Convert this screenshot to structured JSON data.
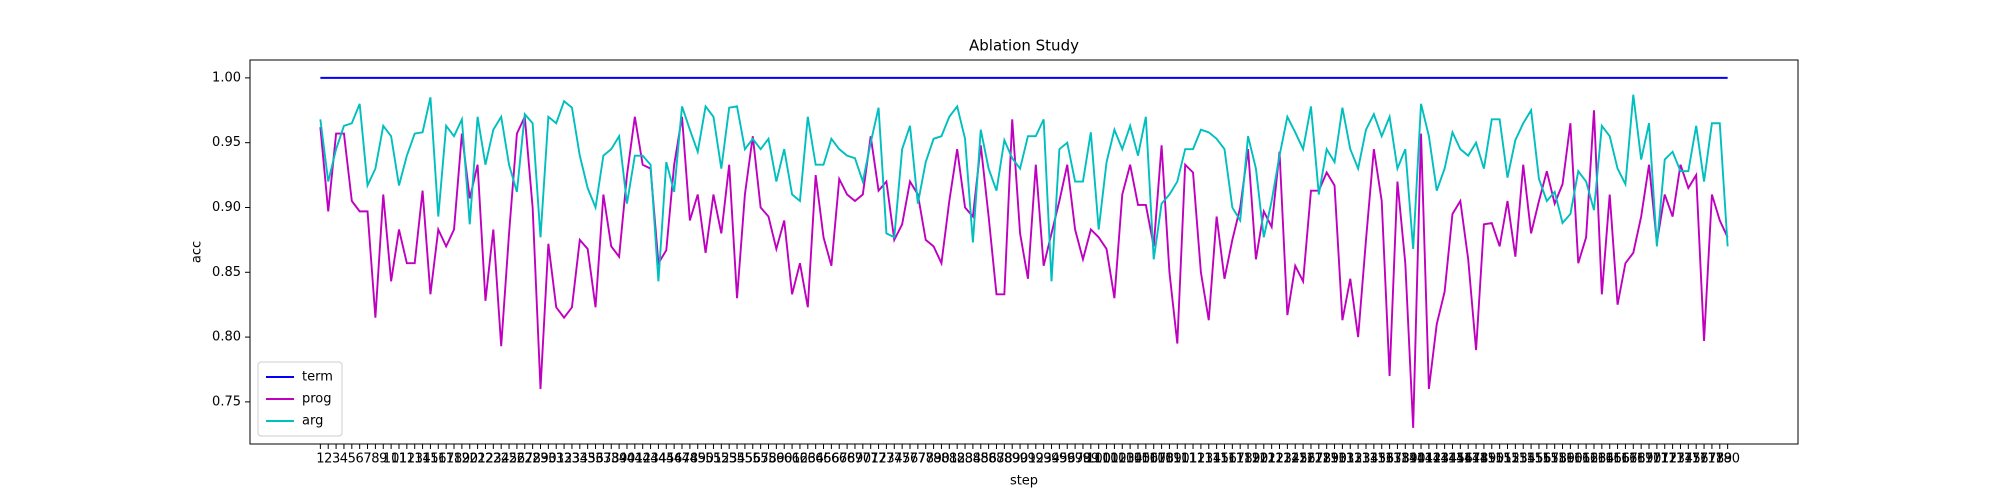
{
  "chart_data": {
    "type": "line",
    "title": "Ablation Study",
    "x_label": "step",
    "y_label": "acc",
    "categories": [
      "1",
      "2",
      "3",
      "4",
      "5",
      "6",
      "7",
      "8",
      "9",
      "10",
      "11",
      "12",
      "13",
      "14",
      "15",
      "16",
      "17",
      "18",
      "19",
      "20",
      "21",
      "22",
      "23",
      "24",
      "25",
      "26",
      "27",
      "28",
      "29",
      "30",
      "31",
      "32",
      "33",
      "34",
      "35",
      "36",
      "37",
      "38",
      "39",
      "40",
      "41",
      "42",
      "43",
      "44",
      "45",
      "46",
      "47",
      "48",
      "49",
      "50",
      "51",
      "52",
      "53",
      "54",
      "55",
      "56",
      "57",
      "58",
      "59",
      "60",
      "61",
      "62",
      "63",
      "64",
      "65",
      "66",
      "67",
      "68",
      "69",
      "70",
      "71",
      "72",
      "73",
      "74",
      "75",
      "76",
      "77",
      "78",
      "79",
      "80",
      "81",
      "82",
      "83",
      "84",
      "85",
      "86",
      "87",
      "88",
      "89",
      "90",
      "91",
      "92",
      "93",
      "94",
      "95",
      "96",
      "97",
      "98",
      "99",
      "100",
      "101",
      "102",
      "103",
      "104",
      "105",
      "106",
      "107",
      "108",
      "109",
      "110",
      "111",
      "112",
      "113",
      "114",
      "115",
      "116",
      "117",
      "118",
      "119",
      "120",
      "121",
      "122",
      "123",
      "124",
      "125",
      "126",
      "127",
      "128",
      "129",
      "130",
      "131",
      "132",
      "133",
      "134",
      "135",
      "136",
      "137",
      "138",
      "139",
      "140",
      "141",
      "142",
      "143",
      "144",
      "145",
      "146",
      "147",
      "148",
      "149",
      "150",
      "151",
      "152",
      "153",
      "154",
      "155",
      "156",
      "157",
      "158",
      "159",
      "160",
      "161",
      "162",
      "163",
      "164",
      "165",
      "166",
      "167",
      "168",
      "169",
      "170",
      "171",
      "172",
      "173",
      "174",
      "175",
      "176",
      "177",
      "178",
      "179",
      "180"
    ],
    "series": [
      {
        "name": "term",
        "color": "#0000ff",
        "values": [
          1,
          1,
          1,
          1,
          1,
          1,
          1,
          1,
          1,
          1,
          1,
          1,
          1,
          1,
          1,
          1,
          1,
          1,
          1,
          1,
          1,
          1,
          1,
          1,
          1,
          1,
          1,
          1,
          1,
          1,
          1,
          1,
          1,
          1,
          1,
          1,
          1,
          1,
          1,
          1,
          1,
          1,
          1,
          1,
          1,
          1,
          1,
          1,
          1,
          1,
          1,
          1,
          1,
          1,
          1,
          1,
          1,
          1,
          1,
          1,
          1,
          1,
          1,
          1,
          1,
          1,
          1,
          1,
          1,
          1,
          1,
          1,
          1,
          1,
          1,
          1,
          1,
          1,
          1,
          1,
          1,
          1,
          1,
          1,
          1,
          1,
          1,
          1,
          1,
          1,
          1,
          1,
          1,
          1,
          1,
          1,
          1,
          1,
          1,
          1,
          1,
          1,
          1,
          1,
          1,
          1,
          1,
          1,
          1,
          1,
          1,
          1,
          1,
          1,
          1,
          1,
          1,
          1,
          1,
          1,
          1,
          1,
          1,
          1,
          1,
          1,
          1,
          1,
          1,
          1,
          1,
          1,
          1,
          1,
          1,
          1,
          1,
          1,
          1,
          1,
          1,
          1,
          1,
          1,
          1,
          1,
          1,
          1,
          1,
          1,
          1,
          1,
          1,
          1,
          1,
          1,
          1,
          1,
          1,
          1,
          1,
          1,
          1,
          1,
          1,
          1,
          1,
          1,
          1,
          1,
          1,
          1,
          1,
          1,
          1,
          1,
          1,
          1,
          1,
          1
        ]
      },
      {
        "name": "prog",
        "color": "#bf00bf",
        "values": [
          0.962,
          0.897,
          0.957,
          0.957,
          0.905,
          0.897,
          0.897,
          0.815,
          0.91,
          0.843,
          0.883,
          0.857,
          0.857,
          0.913,
          0.833,
          0.883,
          0.87,
          0.883,
          0.957,
          0.907,
          0.933,
          0.828,
          0.883,
          0.793,
          0.88,
          0.957,
          0.97,
          0.9,
          0.76,
          0.872,
          0.823,
          0.815,
          0.823,
          0.875,
          0.868,
          0.823,
          0.91,
          0.87,
          0.862,
          0.925,
          0.97,
          0.933,
          0.93,
          0.857,
          0.867,
          0.933,
          0.97,
          0.89,
          0.91,
          0.865,
          0.91,
          0.88,
          0.933,
          0.83,
          0.91,
          0.955,
          0.9,
          0.893,
          0.868,
          0.89,
          0.833,
          0.857,
          0.823,
          0.925,
          0.877,
          0.855,
          0.922,
          0.91,
          0.905,
          0.91,
          0.955,
          0.913,
          0.92,
          0.875,
          0.887,
          0.92,
          0.91,
          0.875,
          0.87,
          0.857,
          0.905,
          0.945,
          0.9,
          0.893,
          0.948,
          0.893,
          0.833,
          0.833,
          0.968,
          0.88,
          0.845,
          0.933,
          0.855,
          0.88,
          0.905,
          0.933,
          0.883,
          0.86,
          0.883,
          0.877,
          0.868,
          0.83,
          0.91,
          0.933,
          0.902,
          0.902,
          0.87,
          0.948,
          0.85,
          0.795,
          0.933,
          0.927,
          0.85,
          0.813,
          0.893,
          0.845,
          0.875,
          0.9,
          0.945,
          0.86,
          0.897,
          0.885,
          0.943,
          0.817,
          0.855,
          0.843,
          0.913,
          0.913,
          0.927,
          0.917,
          0.813,
          0.845,
          0.8,
          0.875,
          0.945,
          0.905,
          0.77,
          0.92,
          0.857,
          0.73,
          0.957,
          0.76,
          0.81,
          0.835,
          0.895,
          0.905,
          0.86,
          0.79,
          0.887,
          0.888,
          0.87,
          0.905,
          0.862,
          0.933,
          0.88,
          0.905,
          0.928,
          0.903,
          0.918,
          0.965,
          0.857,
          0.877,
          0.975,
          0.833,
          0.91,
          0.825,
          0.857,
          0.865,
          0.893,
          0.933,
          0.873,
          0.91,
          0.893,
          0.933,
          0.915,
          0.925,
          0.797,
          0.91,
          0.89,
          0.877
        ]
      },
      {
        "name": "arg",
        "color": "#00bfbf",
        "values": [
          0.968,
          0.92,
          0.945,
          0.963,
          0.965,
          0.98,
          0.917,
          0.93,
          0.963,
          0.955,
          0.917,
          0.94,
          0.957,
          0.958,
          0.985,
          0.893,
          0.963,
          0.955,
          0.968,
          0.887,
          0.97,
          0.933,
          0.96,
          0.97,
          0.933,
          0.912,
          0.972,
          0.965,
          0.877,
          0.97,
          0.965,
          0.982,
          0.977,
          0.94,
          0.915,
          0.9,
          0.94,
          0.945,
          0.955,
          0.903,
          0.94,
          0.94,
          0.933,
          0.843,
          0.935,
          0.912,
          0.978,
          0.96,
          0.943,
          0.978,
          0.97,
          0.93,
          0.977,
          0.978,
          0.945,
          0.953,
          0.945,
          0.953,
          0.92,
          0.945,
          0.91,
          0.905,
          0.97,
          0.933,
          0.933,
          0.953,
          0.945,
          0.94,
          0.938,
          0.92,
          0.95,
          0.977,
          0.88,
          0.877,
          0.945,
          0.963,
          0.903,
          0.935,
          0.953,
          0.955,
          0.97,
          0.978,
          0.953,
          0.873,
          0.96,
          0.93,
          0.913,
          0.952,
          0.938,
          0.93,
          0.955,
          0.955,
          0.968,
          0.843,
          0.945,
          0.95,
          0.92,
          0.92,
          0.958,
          0.883,
          0.935,
          0.96,
          0.945,
          0.963,
          0.94,
          0.97,
          0.86,
          0.903,
          0.91,
          0.92,
          0.945,
          0.945,
          0.96,
          0.958,
          0.953,
          0.945,
          0.9,
          0.89,
          0.955,
          0.93,
          0.877,
          0.905,
          0.94,
          0.97,
          0.958,
          0.945,
          0.978,
          0.91,
          0.945,
          0.935,
          0.977,
          0.945,
          0.93,
          0.96,
          0.972,
          0.955,
          0.97,
          0.93,
          0.945,
          0.868,
          0.98,
          0.955,
          0.913,
          0.93,
          0.958,
          0.945,
          0.94,
          0.95,
          0.93,
          0.968,
          0.968,
          0.923,
          0.952,
          0.965,
          0.975,
          0.922,
          0.905,
          0.912,
          0.888,
          0.895,
          0.928,
          0.92,
          0.898,
          0.963,
          0.955,
          0.93,
          0.918,
          0.987,
          0.937,
          0.965,
          0.87,
          0.937,
          0.943,
          0.928,
          0.928,
          0.963,
          0.92,
          0.965,
          0.965,
          0.87
        ]
      }
    ],
    "ylim": [
      0.7175,
      1.0138
    ],
    "yticks": [
      0.75,
      {
        "value": 0.8,
        "label": "0.80"
      },
      0.85,
      {
        "value": 0.9,
        "label": "0.90"
      },
      0.95,
      {
        "value": 1,
        "label": "1.00"
      }
    ],
    "legend": "lower left"
  }
}
